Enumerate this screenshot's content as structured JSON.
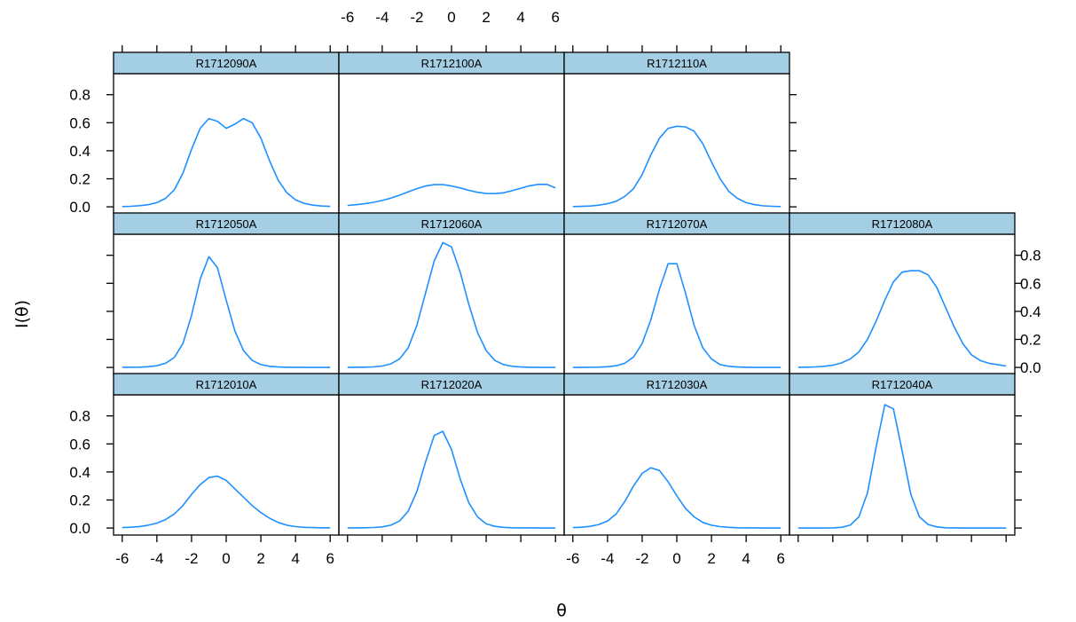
{
  "chart_data": {
    "type": "line",
    "layout": "lattice",
    "xlabel": "θ",
    "ylabel": "I(θ)",
    "xlim": [
      -6.5,
      6.5
    ],
    "ylim": [
      -0.05,
      0.95
    ],
    "x_ticks": [
      -6,
      -4,
      -2,
      0,
      2,
      4,
      6
    ],
    "y_ticks": [
      0.0,
      0.2,
      0.4,
      0.6,
      0.8
    ],
    "x_tick_labels": [
      "-6",
      "-4",
      "-2",
      "0",
      "2",
      "4",
      "6"
    ],
    "y_tick_labels": [
      "0.0",
      "0.2",
      "0.4",
      "0.6",
      "0.8"
    ],
    "line_color": "#1e90ff",
    "strip_color": "#a4cee3",
    "panels": [
      {
        "name": "R1712010A",
        "x": [
          -6,
          -5.5,
          -5,
          -4.5,
          -4,
          -3.5,
          -3,
          -2.5,
          -2,
          -1.5,
          -1,
          -0.5,
          0,
          0.5,
          1,
          1.5,
          2,
          2.5,
          3,
          3.5,
          4,
          4.5,
          5,
          5.5,
          6
        ],
        "y": [
          0.003,
          0.006,
          0.011,
          0.02,
          0.035,
          0.06,
          0.1,
          0.16,
          0.24,
          0.31,
          0.36,
          0.37,
          0.34,
          0.28,
          0.22,
          0.16,
          0.11,
          0.07,
          0.04,
          0.02,
          0.01,
          0.005,
          0.003,
          0.002,
          0.001
        ]
      },
      {
        "name": "R1712020A",
        "x": [
          -6,
          -5.5,
          -5,
          -4.5,
          -4,
          -3.5,
          -3,
          -2.5,
          -2,
          -1.5,
          -1,
          -0.5,
          0,
          0.5,
          1,
          1.5,
          2,
          2.5,
          3,
          3.5,
          4,
          4.5,
          5,
          5.5,
          6
        ],
        "y": [
          0.001,
          0.001,
          0.002,
          0.004,
          0.008,
          0.02,
          0.05,
          0.12,
          0.26,
          0.47,
          0.66,
          0.69,
          0.56,
          0.35,
          0.18,
          0.08,
          0.03,
          0.012,
          0.005,
          0.002,
          0.001,
          0.001,
          0,
          0,
          0
        ]
      },
      {
        "name": "R1712030A",
        "x": [
          -6,
          -5.5,
          -5,
          -4.5,
          -4,
          -3.5,
          -3,
          -2.5,
          -2,
          -1.5,
          -1,
          -0.5,
          0,
          0.5,
          1,
          1.5,
          2,
          2.5,
          3,
          3.5,
          4,
          4.5,
          5,
          5.5,
          6
        ],
        "y": [
          0.003,
          0.006,
          0.012,
          0.025,
          0.05,
          0.1,
          0.19,
          0.3,
          0.39,
          0.43,
          0.41,
          0.33,
          0.23,
          0.14,
          0.08,
          0.04,
          0.02,
          0.01,
          0.005,
          0.002,
          0.001,
          0.001,
          0,
          0,
          0
        ]
      },
      {
        "name": "R1712040A",
        "x": [
          -6,
          -5.5,
          -5,
          -4.5,
          -4,
          -3.5,
          -3,
          -2.5,
          -2,
          -1.5,
          -1,
          -0.5,
          0,
          0.5,
          1,
          1.5,
          2,
          2.5,
          3,
          3.5,
          4,
          4.5,
          5,
          5.5,
          6
        ],
        "y": [
          0,
          0,
          0,
          0,
          0.001,
          0.005,
          0.02,
          0.08,
          0.25,
          0.58,
          0.88,
          0.85,
          0.55,
          0.24,
          0.08,
          0.025,
          0.008,
          0.002,
          0.001,
          0,
          0,
          0,
          0,
          0,
          0
        ]
      },
      {
        "name": "R1712050A",
        "x": [
          -6,
          -5.5,
          -5,
          -4.5,
          -4,
          -3.5,
          -3,
          -2.5,
          -2,
          -1.5,
          -1,
          -0.5,
          0,
          0.5,
          1,
          1.5,
          2,
          2.5,
          3,
          3.5,
          4,
          4.5,
          5,
          5.5,
          6
        ],
        "y": [
          0.001,
          0.001,
          0.002,
          0.005,
          0.012,
          0.03,
          0.07,
          0.17,
          0.37,
          0.63,
          0.79,
          0.71,
          0.48,
          0.26,
          0.12,
          0.05,
          0.02,
          0.008,
          0.003,
          0.001,
          0.001,
          0,
          0,
          0,
          0
        ]
      },
      {
        "name": "R1712060A",
        "x": [
          -6,
          -5.5,
          -5,
          -4.5,
          -4,
          -3.5,
          -3,
          -2.5,
          -2,
          -1.5,
          -1,
          -0.5,
          0,
          0.5,
          1,
          1.5,
          2,
          2.5,
          3,
          3.5,
          4,
          4.5,
          5,
          5.5,
          6
        ],
        "y": [
          0,
          0.001,
          0.002,
          0.004,
          0.01,
          0.025,
          0.06,
          0.14,
          0.3,
          0.53,
          0.76,
          0.89,
          0.86,
          0.68,
          0.45,
          0.25,
          0.12,
          0.05,
          0.02,
          0.008,
          0.003,
          0.001,
          0,
          0,
          0
        ]
      },
      {
        "name": "R1712070A",
        "x": [
          -6,
          -5.5,
          -5,
          -4.5,
          -4,
          -3.5,
          -3,
          -2.5,
          -2,
          -1.5,
          -1,
          -0.5,
          0,
          0.5,
          1,
          1.5,
          2,
          2.5,
          3,
          3.5,
          4,
          4.5,
          5,
          5.5,
          6
        ],
        "y": [
          0,
          0,
          0.001,
          0.002,
          0.005,
          0.012,
          0.03,
          0.075,
          0.17,
          0.34,
          0.56,
          0.74,
          0.74,
          0.53,
          0.3,
          0.14,
          0.06,
          0.02,
          0.008,
          0.003,
          0.001,
          0,
          0,
          0,
          0
        ]
      },
      {
        "name": "R1712080A",
        "x": [
          -6,
          -5.5,
          -5,
          -4.5,
          -4,
          -3.5,
          -3,
          -2.5,
          -2,
          -1.5,
          -1,
          -0.5,
          0,
          0.5,
          1,
          1.5,
          2,
          2.5,
          3,
          3.5,
          4,
          4.5,
          5,
          5.5,
          6
        ],
        "y": [
          0.001,
          0.002,
          0.004,
          0.008,
          0.016,
          0.032,
          0.06,
          0.11,
          0.2,
          0.33,
          0.48,
          0.61,
          0.68,
          0.69,
          0.69,
          0.66,
          0.57,
          0.43,
          0.29,
          0.17,
          0.09,
          0.05,
          0.03,
          0.02,
          0.01
        ]
      },
      {
        "name": "R1712090A",
        "x": [
          -6,
          -5.5,
          -5,
          -4.5,
          -4,
          -3.5,
          -3,
          -2.5,
          -2,
          -1.5,
          -1,
          -0.5,
          0,
          0.5,
          1,
          1.5,
          2,
          2.5,
          3,
          3.5,
          4,
          4.5,
          5,
          5.5,
          6
        ],
        "y": [
          0.002,
          0.004,
          0.008,
          0.015,
          0.03,
          0.06,
          0.12,
          0.24,
          0.41,
          0.56,
          0.63,
          0.61,
          0.56,
          0.59,
          0.63,
          0.6,
          0.49,
          0.33,
          0.19,
          0.1,
          0.05,
          0.025,
          0.012,
          0.006,
          0.003
        ]
      },
      {
        "name": "R1712100A",
        "x": [
          -6,
          -5.5,
          -5,
          -4.5,
          -4,
          -3.5,
          -3,
          -2.5,
          -2,
          -1.5,
          -1,
          -0.5,
          0,
          0.5,
          1,
          1.5,
          2,
          2.5,
          3,
          3.5,
          4,
          4.5,
          5,
          5.5,
          6
        ],
        "y": [
          0.01,
          0.015,
          0.022,
          0.032,
          0.045,
          0.062,
          0.083,
          0.107,
          0.13,
          0.148,
          0.158,
          0.158,
          0.149,
          0.135,
          0.118,
          0.104,
          0.095,
          0.094,
          0.1,
          0.115,
          0.133,
          0.15,
          0.16,
          0.16,
          0.135
        ]
      },
      {
        "name": "R1712110A",
        "x": [
          -6,
          -5.5,
          -5,
          -4.5,
          -4,
          -3.5,
          -3,
          -2.5,
          -2,
          -1.5,
          -1,
          -0.5,
          0,
          0.5,
          1,
          1.5,
          2,
          2.5,
          3,
          3.5,
          4,
          4.5,
          5,
          5.5,
          6
        ],
        "y": [
          0.002,
          0.003,
          0.006,
          0.012,
          0.022,
          0.04,
          0.075,
          0.13,
          0.23,
          0.37,
          0.49,
          0.56,
          0.575,
          0.57,
          0.54,
          0.45,
          0.32,
          0.2,
          0.11,
          0.06,
          0.03,
          0.015,
          0.007,
          0.004,
          0.002
        ]
      }
    ]
  }
}
